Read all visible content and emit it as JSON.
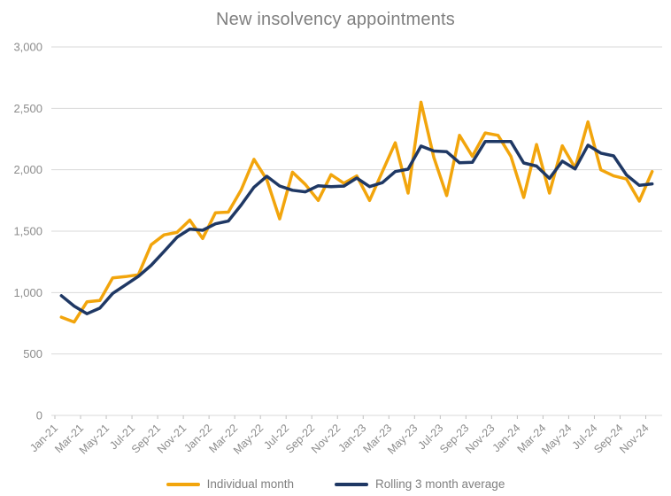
{
  "chart_data": {
    "type": "line",
    "title": "New insolvency appointments",
    "x": [
      "Jan-21",
      "Feb-21",
      "Mar-21",
      "Apr-21",
      "May-21",
      "Jun-21",
      "Jul-21",
      "Aug-21",
      "Sep-21",
      "Oct-21",
      "Nov-21",
      "Dec-21",
      "Jan-22",
      "Feb-22",
      "Mar-22",
      "Apr-22",
      "May-22",
      "Jun-22",
      "Jul-22",
      "Aug-22",
      "Sep-22",
      "Oct-22",
      "Nov-22",
      "Dec-22",
      "Jan-23",
      "Feb-23",
      "Mar-23",
      "Apr-23",
      "May-23",
      "Jun-23",
      "Jul-23",
      "Aug-23",
      "Sep-23",
      "Oct-23",
      "Nov-23",
      "Dec-23",
      "Jan-24",
      "Feb-24",
      "Mar-24",
      "Apr-24",
      "May-24",
      "Jun-24",
      "Jul-24",
      "Aug-24",
      "Sep-24",
      "Oct-24",
      "Nov-24"
    ],
    "x_tick_labels": [
      "Jan-21",
      "Mar-21",
      "May-21",
      "Jul-21",
      "Sep-21",
      "Nov-21",
      "Jan-22",
      "Mar-22",
      "May-22",
      "Jul-22",
      "Sep-22",
      "Nov-22",
      "Jan-23",
      "Mar-23",
      "May-23",
      "Jul-23",
      "Sep-23",
      "Nov-23",
      "Jan-24",
      "Mar-24",
      "May-24",
      "Jul-24",
      "Sep-24",
      "Nov-24"
    ],
    "series": [
      {
        "name": "Individual month",
        "color": "#F2A50C",
        "values": [
          800,
          760,
          925,
          935,
          1120,
          1130,
          1145,
          1390,
          1470,
          1490,
          1590,
          1440,
          1650,
          1655,
          1835,
          2085,
          1920,
          1600,
          1980,
          1880,
          1750,
          1960,
          1890,
          1950,
          1750,
          1985,
          2220,
          1810,
          2550,
          2100,
          1790,
          2280,
          2110,
          2300,
          2280,
          2110,
          1775,
          2205,
          1810,
          2195,
          2015,
          2390,
          2000,
          1950,
          1925,
          1745,
          1985
        ]
      },
      {
        "name": "Rolling 3 month average",
        "color": "#1F3864",
        "values": [
          975,
          890,
          828,
          873,
          993,
          1062,
          1132,
          1222,
          1335,
          1450,
          1517,
          1507,
          1560,
          1582,
          1713,
          1858,
          1947,
          1868,
          1833,
          1820,
          1870,
          1863,
          1867,
          1933,
          1863,
          1895,
          1985,
          2005,
          2193,
          2153,
          2147,
          2057,
          2060,
          2230,
          2230,
          2230,
          2055,
          2030,
          1930,
          2070,
          2007,
          2200,
          2135,
          2113,
          1958,
          1873,
          1885
        ]
      }
    ],
    "ylim": [
      0,
      3000
    ],
    "y_tick_step": 500,
    "y_tick_labels": [
      "0",
      "500",
      "1,000",
      "1,500",
      "2,000",
      "2,500",
      "3,000"
    ],
    "grid": "horizontal",
    "legend_position": "bottom"
  },
  "style": {
    "title_color": "#7F7F7F",
    "axis_text_color": "#8C8C8C",
    "gridline_color": "#D9D9D9",
    "tick_color": "#BFBFBF",
    "legend_text_color": "#7F7F7F"
  }
}
